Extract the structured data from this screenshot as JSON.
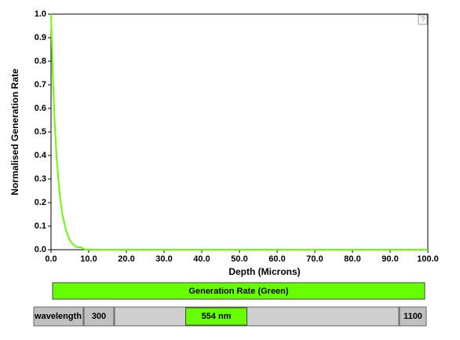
{
  "chart_data": {
    "type": "line",
    "x_label": "Depth (Microns)",
    "y_label": "Normalised Generation Rate",
    "x": [
      0,
      0.5,
      1,
      1.5,
      2,
      2.5,
      3,
      4,
      5,
      6,
      7,
      8,
      9,
      10,
      20,
      30,
      40,
      50,
      60,
      70,
      80,
      90,
      100
    ],
    "series": [
      {
        "name": "Generation Rate (Green)",
        "color": "#66ff00",
        "values": [
          1.0,
          0.73,
          0.53,
          0.39,
          0.29,
          0.21,
          0.15,
          0.08,
          0.04,
          0.02,
          0.01,
          0.01,
          0,
          0,
          0,
          0,
          0,
          0,
          0,
          0,
          0,
          0,
          0
        ]
      }
    ],
    "xlim": [
      0,
      100
    ],
    "ylim": [
      0,
      1
    ],
    "xticks": [
      {
        "value": 0,
        "label": "0.0"
      },
      {
        "value": 10,
        "label": "10.0"
      },
      {
        "value": 20,
        "label": "20.0"
      },
      {
        "value": 30,
        "label": "30.0"
      },
      {
        "value": 40,
        "label": "40.0"
      },
      {
        "value": 50,
        "label": "50.0"
      },
      {
        "value": 60,
        "label": "60.0"
      },
      {
        "value": 70,
        "label": "70.0"
      },
      {
        "value": 80,
        "label": "80.0"
      },
      {
        "value": 90,
        "label": "90.0"
      },
      {
        "value": 100,
        "label": "100.0"
      }
    ],
    "yticks": [
      {
        "value": 0,
        "label": "0.0"
      },
      0.1,
      0.2,
      0.3,
      0.4,
      0.5,
      0.6,
      0.7,
      0.8,
      0.9,
      {
        "value": 1,
        "label": "1.0"
      }
    ]
  },
  "ui": {
    "help": "?",
    "slider": {
      "label": "wavelength",
      "min": 300,
      "max": 1100,
      "value": 554,
      "value_label": "554 nm"
    }
  }
}
